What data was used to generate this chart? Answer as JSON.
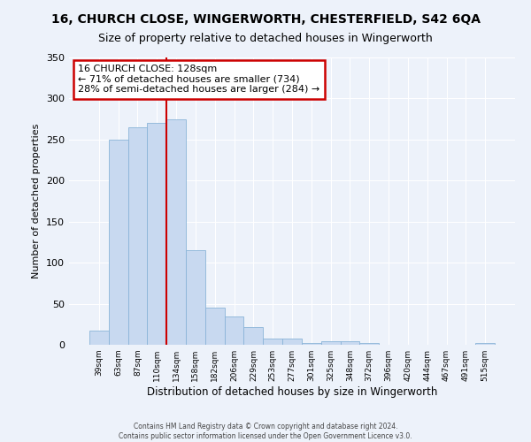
{
  "title1": "16, CHURCH CLOSE, WINGERWORTH, CHESTERFIELD, S42 6QA",
  "title2": "Size of property relative to detached houses in Wingerworth",
  "xlabel": "Distribution of detached houses by size in Wingerworth",
  "ylabel": "Number of detached properties",
  "bin_labels": [
    "39sqm",
    "63sqm",
    "87sqm",
    "110sqm",
    "134sqm",
    "158sqm",
    "182sqm",
    "206sqm",
    "229sqm",
    "253sqm",
    "277sqm",
    "301sqm",
    "325sqm",
    "348sqm",
    "372sqm",
    "396sqm",
    "420sqm",
    "444sqm",
    "467sqm",
    "491sqm",
    "515sqm"
  ],
  "bar_heights": [
    17,
    250,
    265,
    270,
    275,
    115,
    45,
    35,
    22,
    8,
    8,
    2,
    4,
    4,
    2,
    0,
    0,
    0,
    0,
    0,
    2
  ],
  "bar_color": "#c8d9f0",
  "bar_edge_color": "#8ab4d8",
  "annotation_title": "16 CHURCH CLOSE: 128sqm",
  "annotation_line1": "← 71% of detached houses are smaller (734)",
  "annotation_line2": "28% of semi-detached houses are larger (284) →",
  "annotation_box_color": "#ffffff",
  "annotation_box_edge": "#cc0000",
  "red_line_color": "#cc0000",
  "ylim": [
    0,
    350
  ],
  "yticks": [
    0,
    50,
    100,
    150,
    200,
    250,
    300,
    350
  ],
  "footer1": "Contains HM Land Registry data © Crown copyright and database right 2024.",
  "footer2": "Contains public sector information licensed under the Open Government Licence v3.0.",
  "bg_color": "#edf2fa",
  "plot_bg_color": "#edf2fa",
  "grid_color": "#ffffff",
  "title1_fontsize": 10,
  "title2_fontsize": 9
}
